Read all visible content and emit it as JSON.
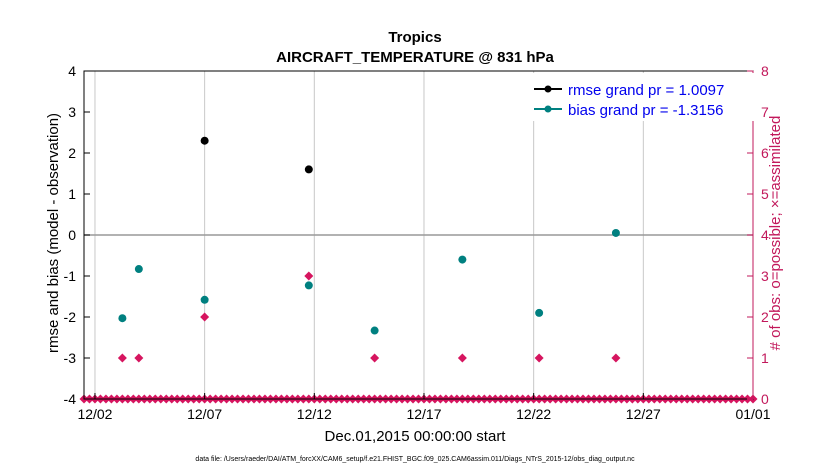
{
  "chart_data": {
    "type": "scatter",
    "title": "Tropics",
    "subtitle": "AIRCRAFT_TEMPERATURE @ 831 hPa",
    "xlabel": "Dec.01,2015 00:00:00 start",
    "ylabel_left": "rmse and bias (model - observation)",
    "ylabel_right": "# of obs: o=possible; ×=assimilated",
    "x_unit": "days since Dec.01,2015",
    "xlim": [
      0.5,
      31
    ],
    "ylim_left": [
      -4,
      4
    ],
    "ylim_right": [
      0,
      8
    ],
    "xticks": [
      {
        "value": 1,
        "label": "12/02"
      },
      {
        "value": 6,
        "label": "12/07"
      },
      {
        "value": 11,
        "label": "12/12"
      },
      {
        "value": 16,
        "label": "12/17"
      },
      {
        "value": 21,
        "label": "12/22"
      },
      {
        "value": 26,
        "label": "12/27"
      },
      {
        "value": 31,
        "label": "01/01"
      }
    ],
    "yticks_left": [
      -4,
      -3,
      -2,
      -1,
      0,
      1,
      2,
      3,
      4
    ],
    "yticks_right": [
      0,
      1,
      2,
      3,
      4,
      5,
      6,
      7,
      8
    ],
    "grid": true,
    "zero_line": 0,
    "legend_position": "top-right",
    "colors": {
      "rmse": "#000000",
      "bias": "#008080",
      "obs": "#d6155f",
      "grid": "#c8c8c8",
      "zero": "#999999",
      "right_axis": "#c2185b",
      "legend_text": "#0000ee"
    },
    "series": [
      {
        "name": "rmse",
        "legend": "rmse grand pr = 1.0097",
        "axis": "left",
        "points": [
          [
            6,
            2.3
          ],
          [
            10.75,
            1.6
          ]
        ]
      },
      {
        "name": "bias",
        "legend": "bias grand pr = -1.3156",
        "axis": "left",
        "points": [
          [
            2.25,
            -2.03
          ],
          [
            3.0,
            -0.83
          ],
          [
            6,
            -1.58
          ],
          [
            10.75,
            -1.23
          ],
          [
            13.75,
            -2.33
          ],
          [
            17.75,
            -0.6
          ],
          [
            21.25,
            -1.9
          ],
          [
            24.75,
            0.05
          ]
        ]
      },
      {
        "name": "obs_possible",
        "axis": "right",
        "points": [
          [
            2.25,
            1
          ],
          [
            3.0,
            1
          ],
          [
            6,
            2
          ],
          [
            10.75,
            3
          ],
          [
            13.75,
            1
          ],
          [
            17.75,
            1
          ],
          [
            21.25,
            1
          ],
          [
            24.75,
            1
          ]
        ]
      },
      {
        "name": "obs_assimilated",
        "axis": "right",
        "value": 0,
        "x_start": 0.5,
        "x_end": 31,
        "step": 0.25
      }
    ],
    "footer": "data file: /Users/raeder/DAI/ATM_forcXX/CAM6_setup/f.e21.FHIST_BGC.f09_025.CAM6assim.011/Diags_NTrS_2015-12/obs_diag_output.nc"
  }
}
